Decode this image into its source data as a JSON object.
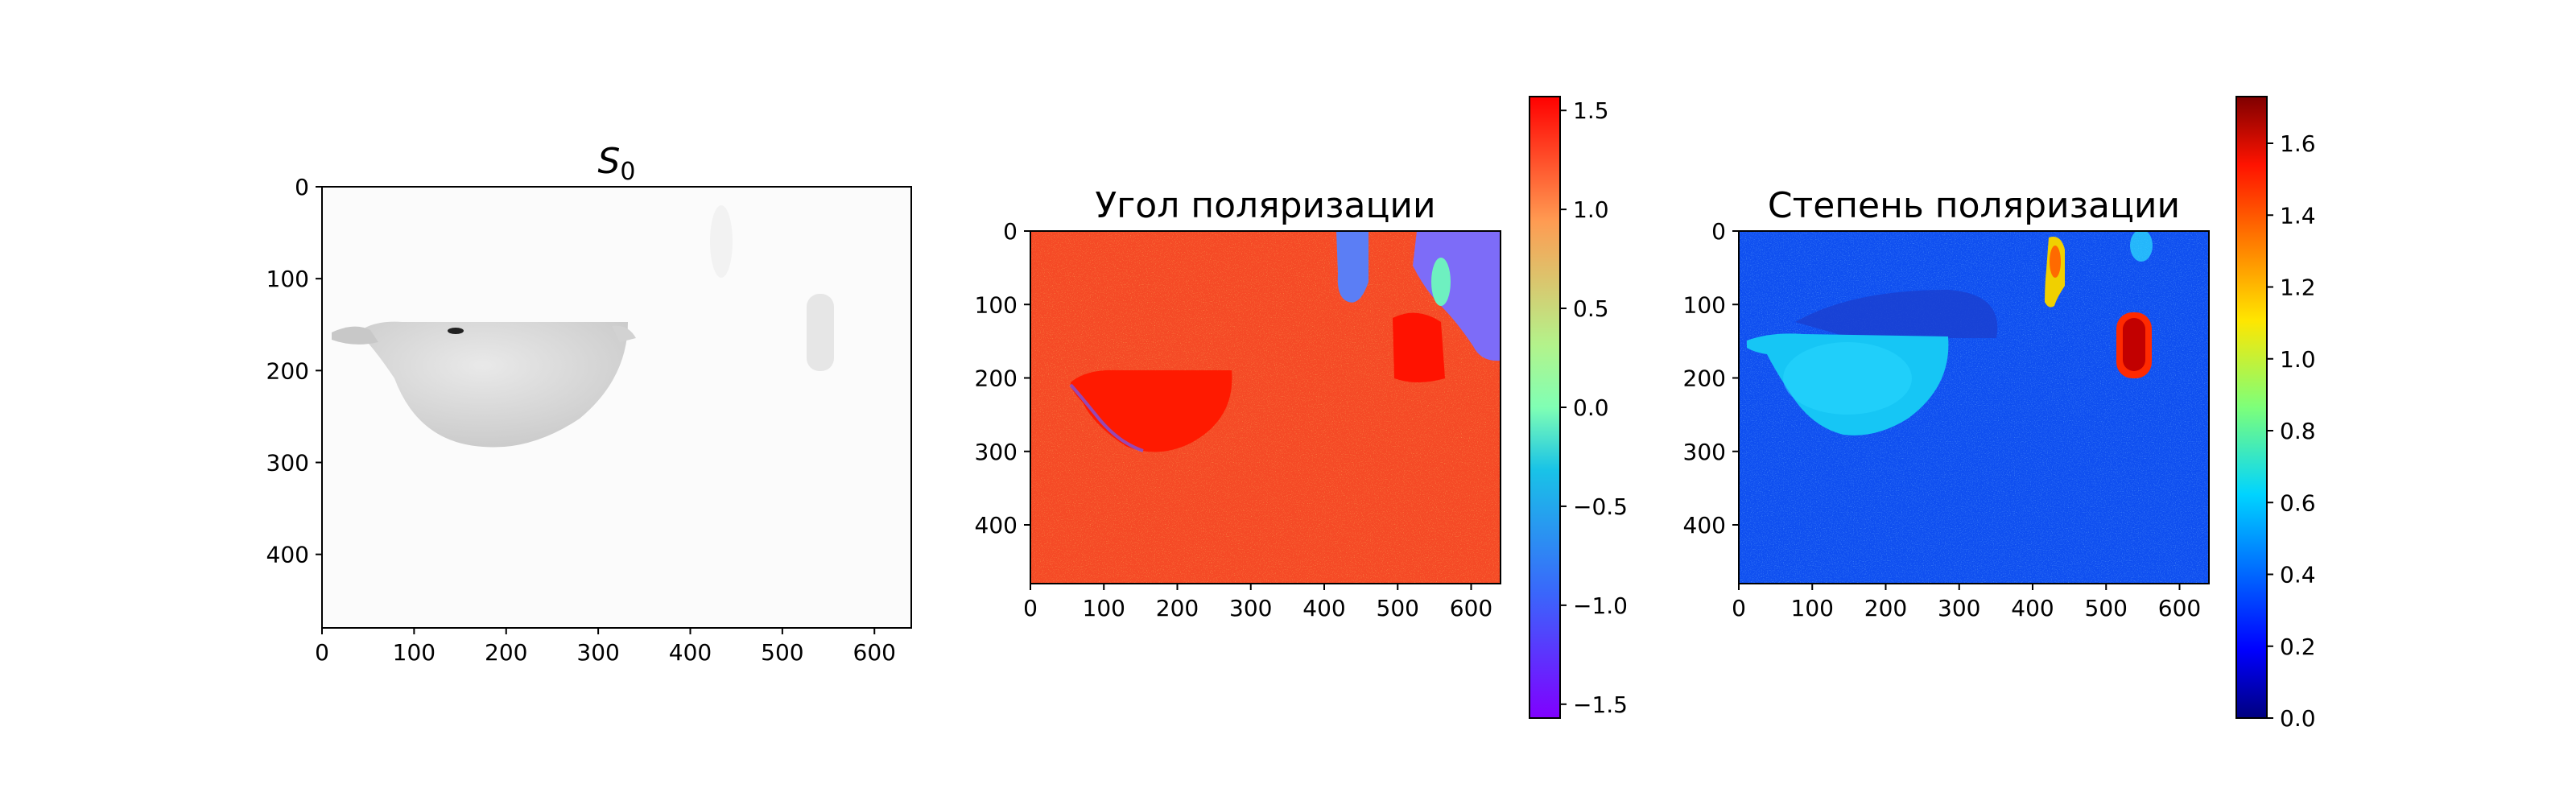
{
  "chart_data": [
    {
      "type": "heatmap",
      "title": "S_0",
      "title_base": "S",
      "title_subscript": "0",
      "colormap": "gray_r",
      "x_range": [
        0,
        640
      ],
      "y_range": [
        0,
        480
      ],
      "y_inverted": true,
      "x_ticks": [
        0,
        100,
        200,
        300,
        400,
        500,
        600
      ],
      "y_ticks": [
        0,
        100,
        200,
        300,
        400
      ],
      "colorbar": false
    },
    {
      "type": "heatmap",
      "title": "Угол поляризации",
      "colormap": "rainbow",
      "x_range": [
        0,
        640
      ],
      "y_range": [
        0,
        480
      ],
      "y_inverted": true,
      "x_ticks": [
        0,
        100,
        200,
        300,
        400,
        500,
        600
      ],
      "y_ticks": [
        0,
        100,
        200,
        300,
        400
      ],
      "colorbar": true,
      "colorbar_range": [
        -1.57,
        1.57
      ],
      "colorbar_ticks": [
        "−1.5",
        "−1.0",
        "−0.5",
        "0.0",
        "0.5",
        "1.0",
        "1.5"
      ],
      "colorbar_tick_values": [
        -1.5,
        -1.0,
        -0.5,
        0.0,
        0.5,
        1.0,
        1.5
      ]
    },
    {
      "type": "heatmap",
      "title": "Степень поляризации",
      "colormap": "jet",
      "x_range": [
        0,
        640
      ],
      "y_range": [
        0,
        480
      ],
      "y_inverted": true,
      "x_ticks": [
        0,
        100,
        200,
        300,
        400,
        500,
        600
      ],
      "y_ticks": [
        0,
        100,
        200,
        300,
        400
      ],
      "colorbar": true,
      "colorbar_range": [
        0.0,
        1.73
      ],
      "colorbar_ticks": [
        "0.0",
        "0.2",
        "0.4",
        "0.6",
        "0.8",
        "1.0",
        "1.2",
        "1.4",
        "1.6"
      ],
      "colorbar_tick_values": [
        0.0,
        0.2,
        0.4,
        0.6,
        0.8,
        1.0,
        1.2,
        1.4,
        1.6
      ]
    }
  ]
}
